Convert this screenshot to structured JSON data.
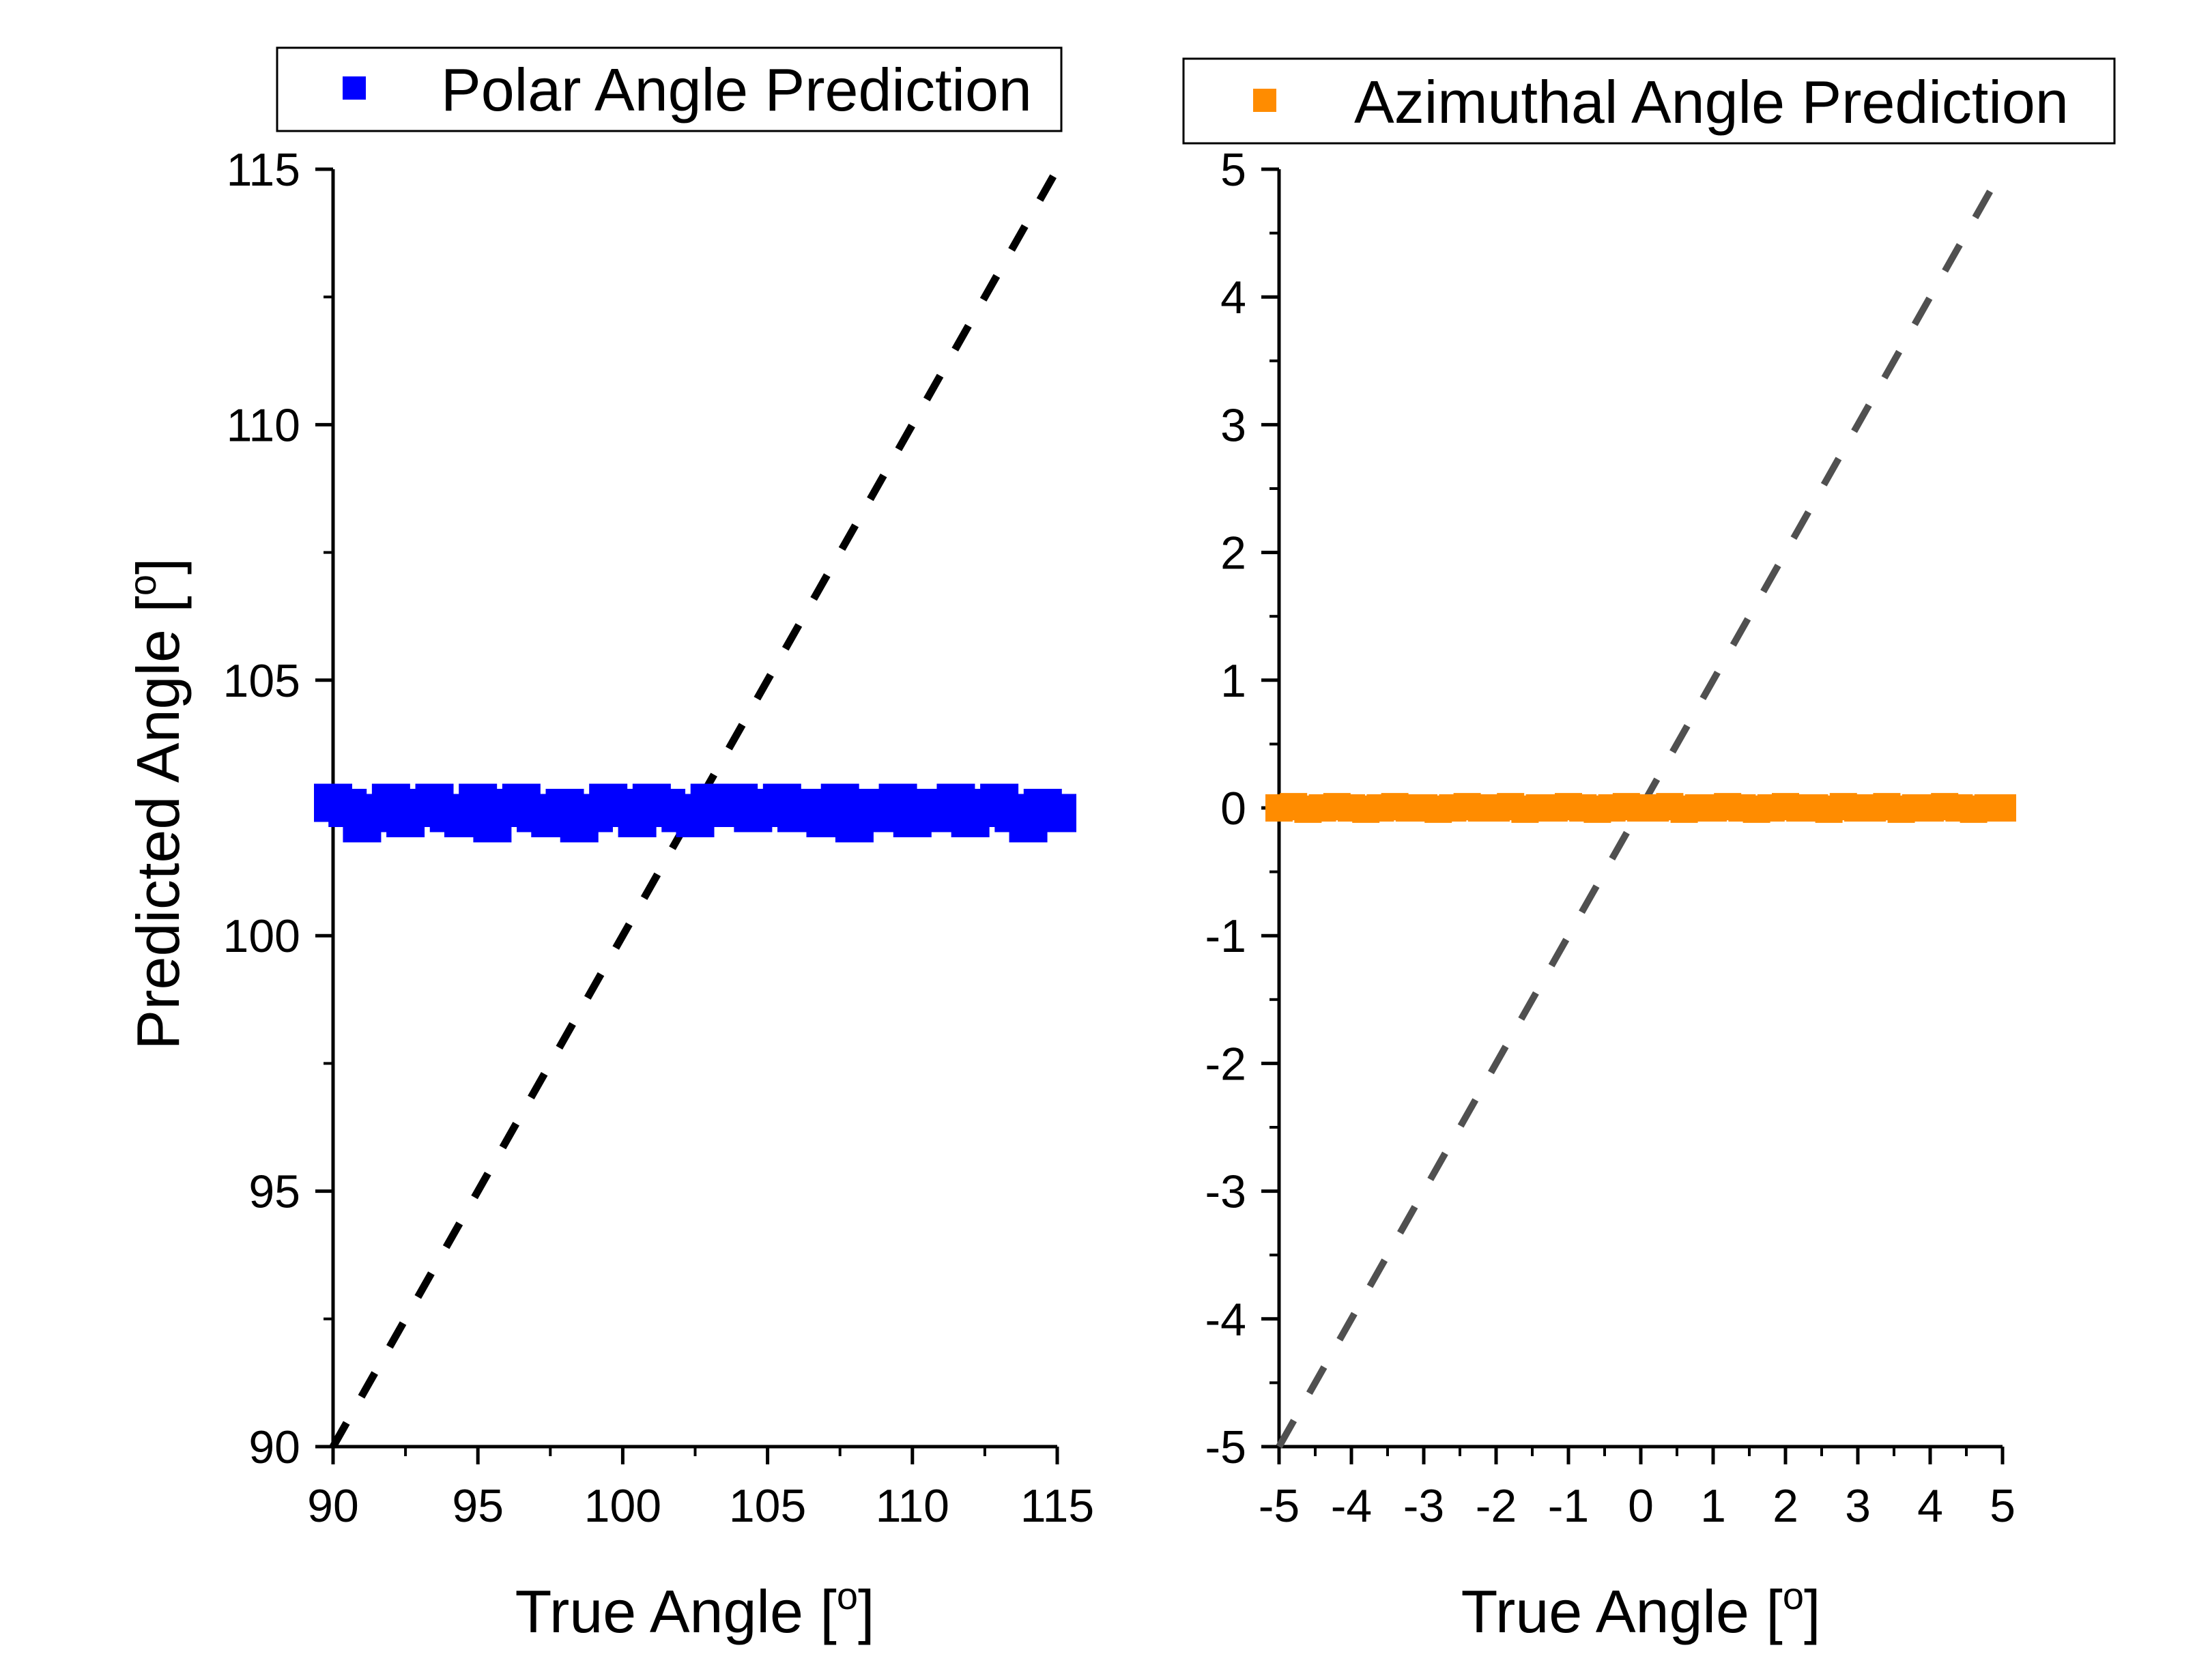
{
  "chart_data": [
    {
      "type": "scatter",
      "xlabel": "True Angle [o]",
      "ylabel": "Predicted Angle [o]",
      "xlim": [
        90,
        115
      ],
      "ylim": [
        90,
        115
      ],
      "xticks": [
        "90",
        "95",
        "100",
        "105",
        "110",
        "115"
      ],
      "yticks": [
        "90",
        "95",
        "100",
        "105",
        "110",
        "115"
      ],
      "legend": {
        "position": "top",
        "entries": [
          "Polar Angle Prediction"
        ]
      },
      "reference_line": {
        "style": "dashed",
        "color": "#000000",
        "from": [
          90,
          90
        ],
        "to": [
          115,
          115
        ]
      },
      "series": [
        {
          "name": "Polar Angle Prediction",
          "color": "#0000ff",
          "marker": "square",
          "x": [
            90,
            90.5,
            91,
            91.5,
            92,
            92.5,
            93,
            93.5,
            94,
            94.5,
            95,
            95.5,
            96,
            96.5,
            97,
            97.5,
            98,
            98.5,
            99,
            99.5,
            100,
            100.5,
            101,
            101.5,
            102,
            102.5,
            103,
            103.5,
            104,
            104.5,
            105,
            105.5,
            106,
            106.5,
            107,
            107.5,
            108,
            108.5,
            109,
            109.5,
            110,
            110.5,
            111,
            111.5,
            112,
            112.5,
            113,
            113.5,
            114,
            114.5,
            115
          ],
          "y": [
            102.6,
            102.5,
            102.2,
            102.4,
            102.6,
            102.3,
            102.5,
            102.6,
            102.4,
            102.3,
            102.6,
            102.2,
            102.5,
            102.6,
            102.4,
            102.3,
            102.5,
            102.2,
            102.4,
            102.6,
            102.5,
            102.3,
            102.6,
            102.5,
            102.4,
            102.3,
            102.6,
            102.5,
            102.6,
            102.4,
            102.5,
            102.6,
            102.4,
            102.5,
            102.3,
            102.6,
            102.2,
            102.5,
            102.4,
            102.6,
            102.3,
            102.5,
            102.4,
            102.6,
            102.3,
            102.5,
            102.6,
            102.4,
            102.2,
            102.5,
            102.4
          ]
        }
      ]
    },
    {
      "type": "scatter",
      "xlabel": "True Angle [o]",
      "ylabel": "",
      "xlim": [
        -5,
        5
      ],
      "ylim": [
        -5,
        5
      ],
      "xticks": [
        "-5",
        "-4",
        "-3",
        "-2",
        "-1",
        "0",
        "1",
        "2",
        "3",
        "4",
        "5"
      ],
      "yticks": [
        "-5",
        "-4",
        "-3",
        "-2",
        "-1",
        "0",
        "1",
        "2",
        "3",
        "4",
        "5"
      ],
      "legend": {
        "position": "top",
        "entries": [
          "Azimuthal Angle Prediction"
        ]
      },
      "reference_line": {
        "style": "dashed",
        "color": "#505050",
        "from": [
          -5,
          -5
        ],
        "to": [
          5,
          5
        ]
      },
      "series": [
        {
          "name": "Azimuthal Angle Prediction",
          "color": "#ff8c00",
          "marker": "square",
          "x": [
            -5,
            -4.8,
            -4.6,
            -4.4,
            -4.2,
            -4,
            -3.8,
            -3.6,
            -3.4,
            -3.2,
            -3,
            -2.8,
            -2.6,
            -2.4,
            -2.2,
            -2,
            -1.8,
            -1.6,
            -1.4,
            -1.2,
            -1,
            -0.8,
            -0.6,
            -0.4,
            -0.2,
            0,
            0.2,
            0.4,
            0.6,
            0.8,
            1,
            1.2,
            1.4,
            1.6,
            1.8,
            2,
            2.2,
            2.4,
            2.6,
            2.8,
            3,
            3.2,
            3.4,
            3.6,
            3.8,
            4,
            4.2,
            4.4,
            4.6,
            4.8,
            5
          ],
          "y": [
            0,
            0.01,
            -0.01,
            0,
            0.01,
            0,
            -0.01,
            0,
            0.01,
            0,
            0,
            -0.01,
            0,
            0.01,
            0,
            0,
            0.01,
            -0.01,
            0,
            0,
            0.01,
            0,
            -0.01,
            0,
            0.01,
            0,
            0,
            0.01,
            -0.01,
            0,
            0,
            0.01,
            0,
            -0.01,
            0,
            0.01,
            0,
            0,
            -0.01,
            0.01,
            0,
            0,
            0.01,
            -0.01,
            0,
            0,
            0.01,
            0,
            -0.01,
            0,
            0
          ]
        }
      ]
    }
  ]
}
